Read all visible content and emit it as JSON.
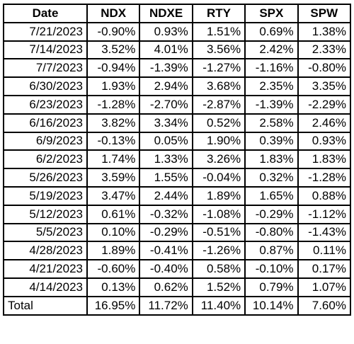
{
  "chart_data": {
    "type": "table",
    "columns": [
      "Date",
      "NDX",
      "NDXE",
      "RTY",
      "SPX",
      "SPW"
    ],
    "rows": [
      [
        "7/21/2023",
        "-0.90%",
        "0.93%",
        "1.51%",
        "0.69%",
        "1.38%"
      ],
      [
        "7/14/2023",
        "3.52%",
        "4.01%",
        "3.56%",
        "2.42%",
        "2.33%"
      ],
      [
        "7/7/2023",
        "-0.94%",
        "-1.39%",
        "-1.27%",
        "-1.16%",
        "-0.80%"
      ],
      [
        "6/30/2023",
        "1.93%",
        "2.94%",
        "3.68%",
        "2.35%",
        "3.35%"
      ],
      [
        "6/23/2023",
        "-1.28%",
        "-2.70%",
        "-2.87%",
        "-1.39%",
        "-2.29%"
      ],
      [
        "6/16/2023",
        "3.82%",
        "3.34%",
        "0.52%",
        "2.58%",
        "2.46%"
      ],
      [
        "6/9/2023",
        "-0.13%",
        "0.05%",
        "1.90%",
        "0.39%",
        "0.93%"
      ],
      [
        "6/2/2023",
        "1.74%",
        "1.33%",
        "3.26%",
        "1.83%",
        "1.83%"
      ],
      [
        "5/26/2023",
        "3.59%",
        "1.55%",
        "-0.04%",
        "0.32%",
        "-1.28%"
      ],
      [
        "5/19/2023",
        "3.47%",
        "2.44%",
        "1.89%",
        "1.65%",
        "0.88%"
      ],
      [
        "5/12/2023",
        "0.61%",
        "-0.32%",
        "-1.08%",
        "-0.29%",
        "-1.12%"
      ],
      [
        "5/5/2023",
        "0.10%",
        "-0.29%",
        "-0.51%",
        "-0.80%",
        "-1.43%"
      ],
      [
        "4/28/2023",
        "1.89%",
        "-0.41%",
        "-1.26%",
        "0.87%",
        "0.11%"
      ],
      [
        "4/21/2023",
        "-0.60%",
        "-0.40%",
        "0.58%",
        "-0.10%",
        "0.17%"
      ],
      [
        "4/14/2023",
        "0.13%",
        "0.62%",
        "1.52%",
        "0.79%",
        "1.07%"
      ]
    ],
    "total": [
      "Total",
      "16.95%",
      "11.72%",
      "11.40%",
      "10.14%",
      "7.60%"
    ]
  }
}
